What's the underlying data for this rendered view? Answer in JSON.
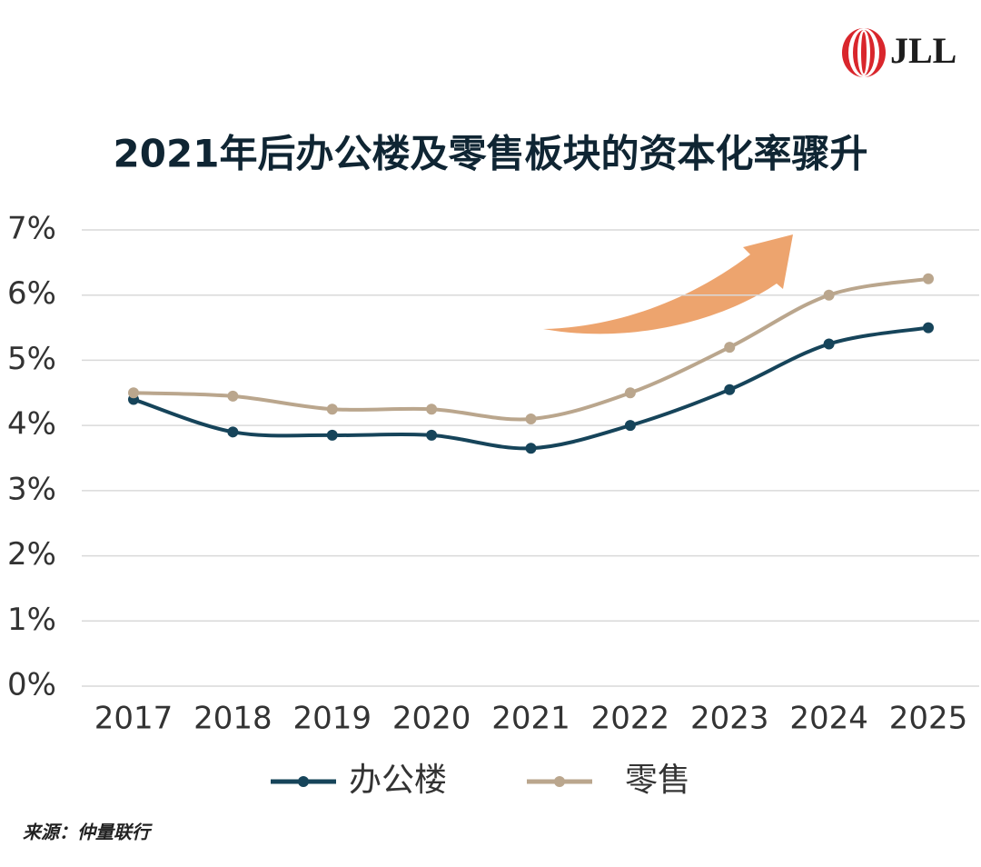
{
  "logo": "JLL",
  "source": "来源：仲量联行",
  "chart_data": {
    "type": "line",
    "title": "2021年后办公楼及零售板块的资本化率骤升",
    "categories": [
      "2017",
      "2018",
      "2019",
      "2020",
      "2021",
      "2022",
      "2023",
      "2024",
      "2025"
    ],
    "series": [
      {
        "name": "办公楼",
        "color": "#16445a",
        "values": [
          4.4,
          3.9,
          3.85,
          3.85,
          3.65,
          4.0,
          4.55,
          5.25,
          5.5
        ]
      },
      {
        "name": "零售",
        "color": "#baa68d",
        "values": [
          4.5,
          4.45,
          4.25,
          4.25,
          4.1,
          4.5,
          5.2,
          6.0,
          6.25
        ]
      }
    ],
    "ylim": [
      0,
      7
    ],
    "yticks": [
      {
        "value": 0,
        "label": "0%"
      },
      {
        "value": 1,
        "label": "1%"
      },
      {
        "value": 2,
        "label": "2%"
      },
      {
        "value": 3,
        "label": "3%"
      },
      {
        "value": 4,
        "label": "4%"
      },
      {
        "value": 5,
        "label": "5%"
      },
      {
        "value": 6,
        "label": "6%"
      },
      {
        "value": 7,
        "label": "7%"
      }
    ],
    "grid": true,
    "legend": "bottom"
  }
}
